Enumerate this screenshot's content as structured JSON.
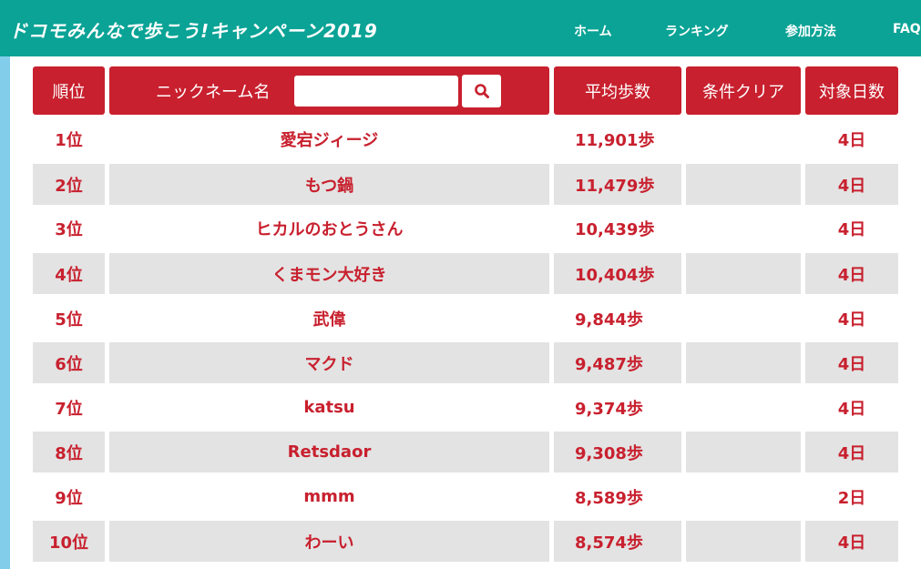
{
  "header": {
    "brand": "ドコモみんなで歩こう!キャンペーン2019",
    "nav": [
      "ホーム",
      "ランキング",
      "参加方法",
      "FAQ"
    ]
  },
  "table": {
    "headers": {
      "rank": "順位",
      "nickname": "ニックネーム名",
      "avg_steps": "平均歩数",
      "condition_clear": "条件クリア",
      "days": "対象日数"
    },
    "search": {
      "value": "",
      "placeholder": ""
    },
    "rows": [
      {
        "rank": "1位",
        "name": "愛宕ジィージ",
        "steps": "11,901歩",
        "clear": "",
        "days": "4日"
      },
      {
        "rank": "2位",
        "name": "もつ鍋",
        "steps": "11,479歩",
        "clear": "",
        "days": "4日"
      },
      {
        "rank": "3位",
        "name": "ヒカルのおとうさん",
        "steps": "10,439歩",
        "clear": "",
        "days": "4日"
      },
      {
        "rank": "4位",
        "name": "くまモン大好き",
        "steps": "10,404歩",
        "clear": "",
        "days": "4日"
      },
      {
        "rank": "5位",
        "name": "武偉",
        "steps": "9,844歩",
        "clear": "",
        "days": "4日"
      },
      {
        "rank": "6位",
        "name": "マクド",
        "steps": "9,487歩",
        "clear": "",
        "days": "4日"
      },
      {
        "rank": "7位",
        "name": "katsu",
        "steps": "9,374歩",
        "clear": "",
        "days": "4日"
      },
      {
        "rank": "8位",
        "name": "Retsdaor",
        "steps": "9,308歩",
        "clear": "",
        "days": "4日"
      },
      {
        "rank": "9位",
        "name": "mmm",
        "steps": "8,589歩",
        "clear": "",
        "days": "2日"
      },
      {
        "rank": "10位",
        "name": "わーい",
        "steps": "8,574歩",
        "clear": "",
        "days": "4日"
      }
    ]
  },
  "colors": {
    "header_bg": "#0aa396",
    "accent_red": "#c8202e",
    "row_shade": "#e3e3e3",
    "left_bar": "#82cdea"
  },
  "icons": {
    "search": "search-icon"
  }
}
